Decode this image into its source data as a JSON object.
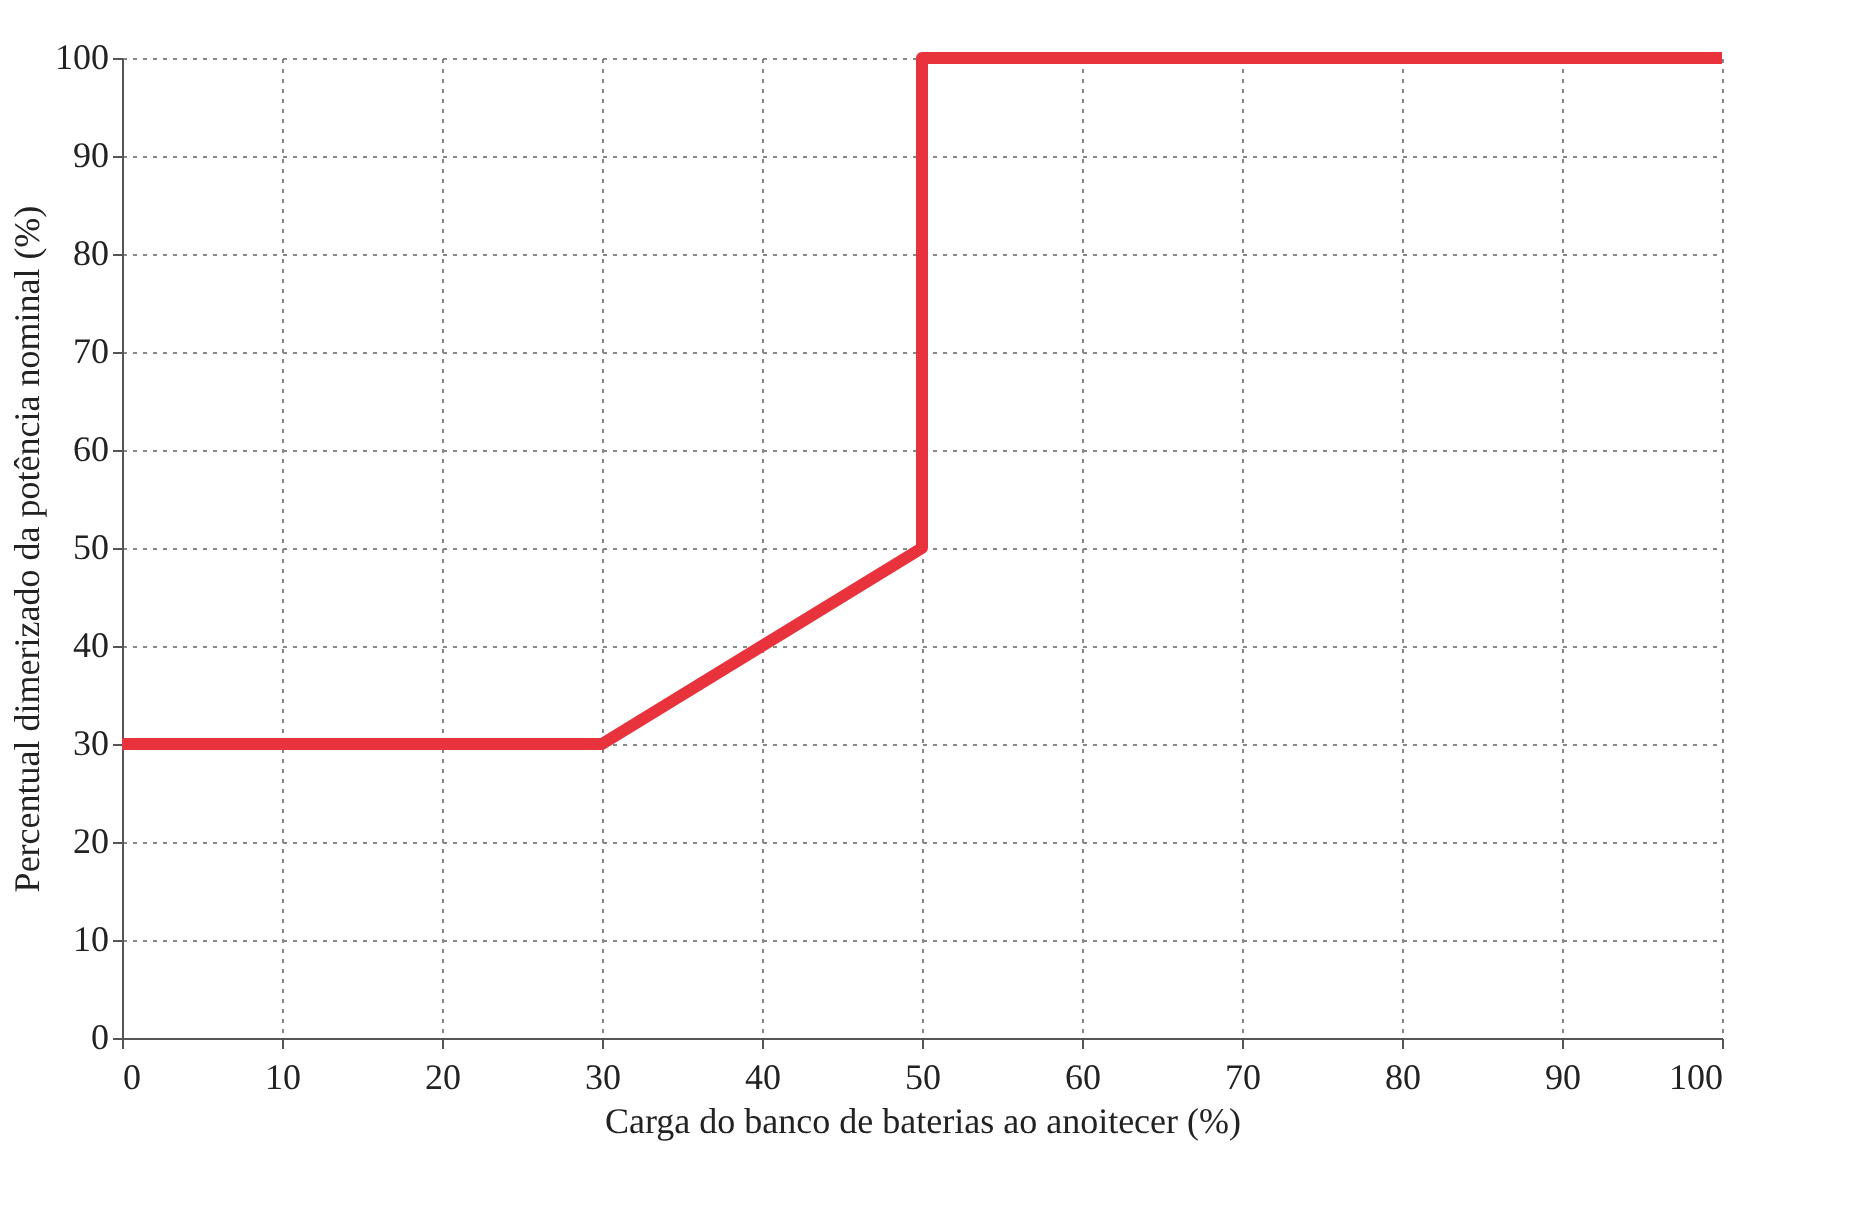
{
  "chart_data": {
    "type": "line",
    "xlabel": "Carga do banco de baterias ao anoitecer (%)",
    "ylabel": "Percentual dimerizado da potência nominal (%)",
    "x": [
      0,
      30,
      50,
      50,
      100
    ],
    "series": [
      {
        "color": "#e8323c",
        "values": [
          30,
          30,
          50,
          100,
          100
        ]
      }
    ],
    "xlim": [
      0,
      100
    ],
    "xticks": [
      0,
      10,
      20,
      30,
      40,
      50,
      60,
      70,
      80,
      90,
      100
    ],
    "ylim": [
      0,
      100
    ],
    "yticks": [
      0,
      10,
      20,
      30,
      40,
      50,
      60,
      70,
      80,
      90,
      100
    ],
    "grid": true,
    "legend": false,
    "marker": "none",
    "line_style": "solid"
  }
}
